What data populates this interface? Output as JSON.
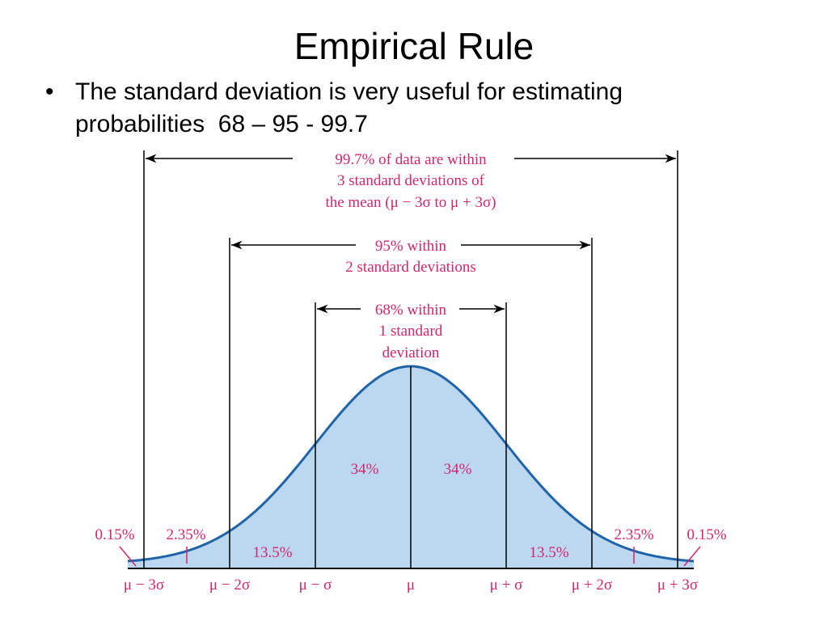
{
  "slide": {
    "title": "Empirical Rule",
    "bullet": {
      "marker": "•",
      "line1": "The standard deviation is very useful for estimating",
      "line2": "probabilities  68 – 95 - 99.7"
    }
  },
  "diagram": {
    "range_3sd": [
      "99.7% of data are within",
      "3 standard deviations of",
      "the mean (μ − 3σ to μ + 3σ)"
    ],
    "range_2sd": [
      "95% within",
      "2 standard deviations"
    ],
    "range_1sd": [
      "68% within",
      "1 standard",
      "deviation"
    ],
    "region_labels": {
      "left_tail": "0.15%",
      "left_2_3": "2.35%",
      "left_1_2": "13.5%",
      "left_0_1": "34%",
      "right_0_1": "34%",
      "right_1_2": "13.5%",
      "right_2_3": "2.35%",
      "right_tail": "0.15%"
    },
    "axis_labels": [
      "μ − 3σ",
      "μ − 2σ",
      "μ − σ",
      "μ",
      "μ + σ",
      "μ + 2σ",
      "μ + 3σ"
    ],
    "colors": {
      "curve": "#1f63a8",
      "fill": "#bcd7f0",
      "label": "#d2266e",
      "line": "#000000"
    }
  }
}
